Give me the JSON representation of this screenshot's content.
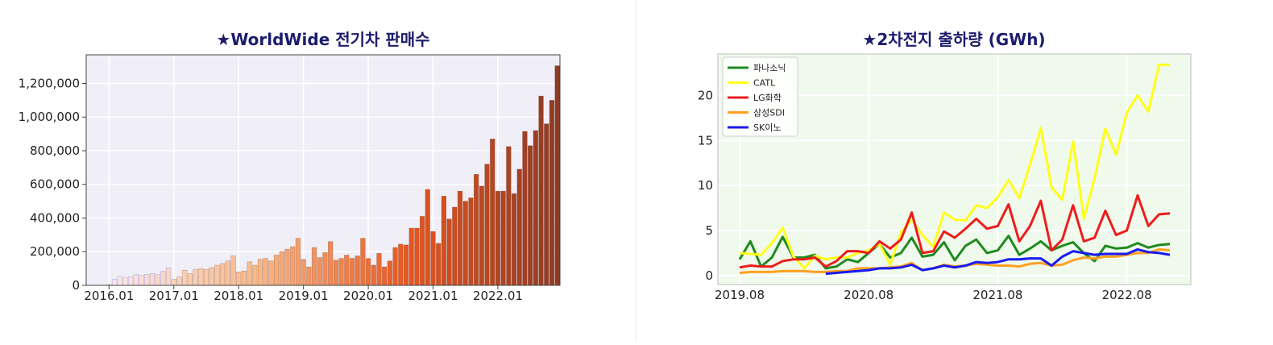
{
  "chart_data": [
    {
      "type": "bar",
      "title": "★WorldWide 전기차 판매수",
      "xlabel": "",
      "ylabel": "",
      "ylim": [
        0,
        1370000
      ],
      "yticks": [
        0,
        200000,
        400000,
        600000,
        800000,
        1000000,
        1200000
      ],
      "ytick_labels": [
        "0",
        "200,000",
        "400,000",
        "600,000",
        "800,000",
        "1,000,000",
        "1,200,000"
      ],
      "xtick_labels": [
        "2016.01",
        "2017.01",
        "2018.01",
        "2019.01",
        "2020.01",
        "2021.01",
        "2022.01"
      ],
      "grid": true,
      "background": "#f0eef6",
      "color_gradient": [
        "#fbe9e8",
        "#f7b888",
        "#e8561e",
        "#8e3a25"
      ],
      "categories": [
        "2016.01",
        "2016.02",
        "2016.03",
        "2016.04",
        "2016.05",
        "2016.06",
        "2016.07",
        "2016.08",
        "2016.09",
        "2016.10",
        "2016.11",
        "2016.12",
        "2017.01",
        "2017.02",
        "2017.03",
        "2017.04",
        "2017.05",
        "2017.06",
        "2017.07",
        "2017.08",
        "2017.09",
        "2017.10",
        "2017.11",
        "2017.12",
        "2018.01",
        "2018.02",
        "2018.03",
        "2018.04",
        "2018.05",
        "2018.06",
        "2018.07",
        "2018.08",
        "2018.09",
        "2018.10",
        "2018.11",
        "2018.12",
        "2019.01",
        "2019.02",
        "2019.03",
        "2019.04",
        "2019.05",
        "2019.06",
        "2019.07",
        "2019.08",
        "2019.09",
        "2019.10",
        "2019.11",
        "2019.12",
        "2020.01",
        "2020.02",
        "2020.03",
        "2020.04",
        "2020.05",
        "2020.06",
        "2020.07",
        "2020.08",
        "2020.09",
        "2020.10",
        "2020.11",
        "2020.12",
        "2021.01",
        "2021.02",
        "2021.03",
        "2021.04",
        "2021.05",
        "2021.06",
        "2021.07",
        "2021.08",
        "2021.09",
        "2021.10",
        "2021.11",
        "2021.12",
        "2022.01",
        "2022.02",
        "2022.03",
        "2022.04",
        "2022.05",
        "2022.06",
        "2022.07",
        "2022.08",
        "2022.09",
        "2022.10",
        "2022.11",
        "2022.12"
      ],
      "values": [
        5000,
        35000,
        55000,
        45000,
        50000,
        65000,
        60000,
        65000,
        70000,
        65000,
        85000,
        105000,
        35000,
        50000,
        90000,
        70000,
        95000,
        100000,
        95000,
        105000,
        120000,
        130000,
        145000,
        175000,
        80000,
        85000,
        140000,
        120000,
        155000,
        160000,
        145000,
        180000,
        200000,
        215000,
        230000,
        280000,
        155000,
        110000,
        225000,
        165000,
        195000,
        260000,
        150000,
        160000,
        180000,
        160000,
        175000,
        280000,
        160000,
        120000,
        190000,
        110000,
        145000,
        225000,
        245000,
        240000,
        340000,
        340000,
        410000,
        570000,
        320000,
        250000,
        530000,
        395000,
        465000,
        560000,
        500000,
        520000,
        660000,
        590000,
        720000,
        870000,
        560000,
        560000,
        825000,
        545000,
        690000,
        915000,
        830000,
        920000,
        1125000,
        960000,
        1100000,
        1305000
      ]
    },
    {
      "type": "line",
      "title": "★2차전지 출하량 (GWh)",
      "xlabel": "",
      "ylabel": "",
      "ylim": [
        -1,
        24.6
      ],
      "yticks": [
        0,
        5,
        10,
        15,
        20
      ],
      "ytick_labels": [
        "0",
        "5",
        "10",
        "15",
        "20"
      ],
      "xtick_labels": [
        "2019.08",
        "2020.08",
        "2021.08",
        "2022.08"
      ],
      "grid": true,
      "background": "#effaec",
      "legend_placement": "top-left",
      "x": [
        "2019.08",
        "2019.09",
        "2019.10",
        "2019.11",
        "2019.12",
        "2020.01",
        "2020.02",
        "2020.03",
        "2020.04",
        "2020.05",
        "2020.06",
        "2020.07",
        "2020.08",
        "2020.09",
        "2020.10",
        "2020.11",
        "2020.12",
        "2021.01",
        "2021.02",
        "2021.03",
        "2021.04",
        "2021.05",
        "2021.06",
        "2021.07",
        "2021.08",
        "2021.09",
        "2021.10",
        "2021.11",
        "2021.12",
        "2022.01",
        "2022.02",
        "2022.03",
        "2022.04",
        "2022.05",
        "2022.06",
        "2022.07",
        "2022.08",
        "2022.09",
        "2022.10",
        "2022.11",
        "2022.12"
      ],
      "series": [
        {
          "name": "파나소닉",
          "color": "#1f8a1f",
          "values": [
            1.8,
            3.8,
            1.0,
            2.0,
            4.3,
            2.0,
            2.0,
            2.3,
            0.8,
            1.0,
            1.8,
            1.5,
            2.5,
            3.5,
            2.0,
            2.5,
            4.2,
            2.1,
            2.3,
            3.7,
            1.7,
            3.3,
            4.0,
            2.5,
            2.8,
            4.4,
            2.3,
            3.0,
            3.8,
            2.8,
            3.3,
            3.7,
            2.5,
            1.6,
            3.3,
            3.0,
            3.1,
            3.6,
            3.1,
            3.4,
            3.5
          ]
        },
        {
          "name": "CATL",
          "color": "#ffff1a",
          "values": [
            2.5,
            2.4,
            2.3,
            3.6,
            5.3,
            2.1,
            0.8,
            2.2,
            1.8,
            2.0,
            2.0,
            2.5,
            2.8,
            3.5,
            1.2,
            4.8,
            6.2,
            4.5,
            3.2,
            7.0,
            6.2,
            6.1,
            7.8,
            7.5,
            8.7,
            10.6,
            8.6,
            12.3,
            16.4,
            9.8,
            8.4,
            14.9,
            6.3,
            10.8,
            16.3,
            13.4,
            18.1,
            20.0,
            18.2,
            23.4,
            23.4
          ]
        },
        {
          "name": "LG화학",
          "color": "#ee1c1c",
          "values": [
            0.9,
            1.1,
            1.0,
            1.0,
            1.6,
            1.8,
            1.8,
            2.0,
            1.0,
            1.6,
            2.7,
            2.7,
            2.5,
            3.8,
            3.0,
            4.0,
            7.0,
            2.5,
            2.7,
            4.9,
            4.2,
            5.2,
            6.3,
            5.2,
            5.5,
            7.9,
            3.8,
            5.5,
            8.3,
            2.8,
            4.0,
            7.8,
            3.8,
            4.2,
            7.2,
            4.5,
            5.0,
            8.9,
            5.5,
            6.8,
            6.9
          ]
        },
        {
          "name": "삼성SDI",
          "color": "#ffa020",
          "values": [
            0.3,
            0.4,
            0.4,
            0.4,
            0.5,
            0.5,
            0.5,
            0.4,
            0.4,
            0.5,
            0.5,
            0.8,
            0.8,
            0.8,
            0.9,
            1.0,
            1.4,
            0.6,
            0.8,
            1.2,
            1.0,
            1.1,
            1.3,
            1.2,
            1.1,
            1.1,
            1.0,
            1.3,
            1.4,
            1.1,
            1.2,
            1.7,
            2.0,
            1.9,
            2.1,
            2.1,
            2.3,
            2.5,
            2.5,
            2.9,
            2.8
          ]
        },
        {
          "name": "SK이노",
          "color": "#1a1aee",
          "values": [
            null,
            null,
            null,
            null,
            null,
            null,
            null,
            null,
            0.2,
            0.3,
            0.4,
            0.5,
            0.6,
            0.8,
            0.8,
            0.9,
            1.2,
            0.6,
            0.8,
            1.1,
            0.9,
            1.1,
            1.5,
            1.4,
            1.5,
            1.8,
            1.8,
            1.9,
            1.9,
            1.1,
            2.1,
            2.7,
            2.5,
            2.3,
            2.4,
            2.4,
            2.4,
            2.9,
            2.6,
            2.5,
            2.3
          ]
        }
      ]
    }
  ]
}
